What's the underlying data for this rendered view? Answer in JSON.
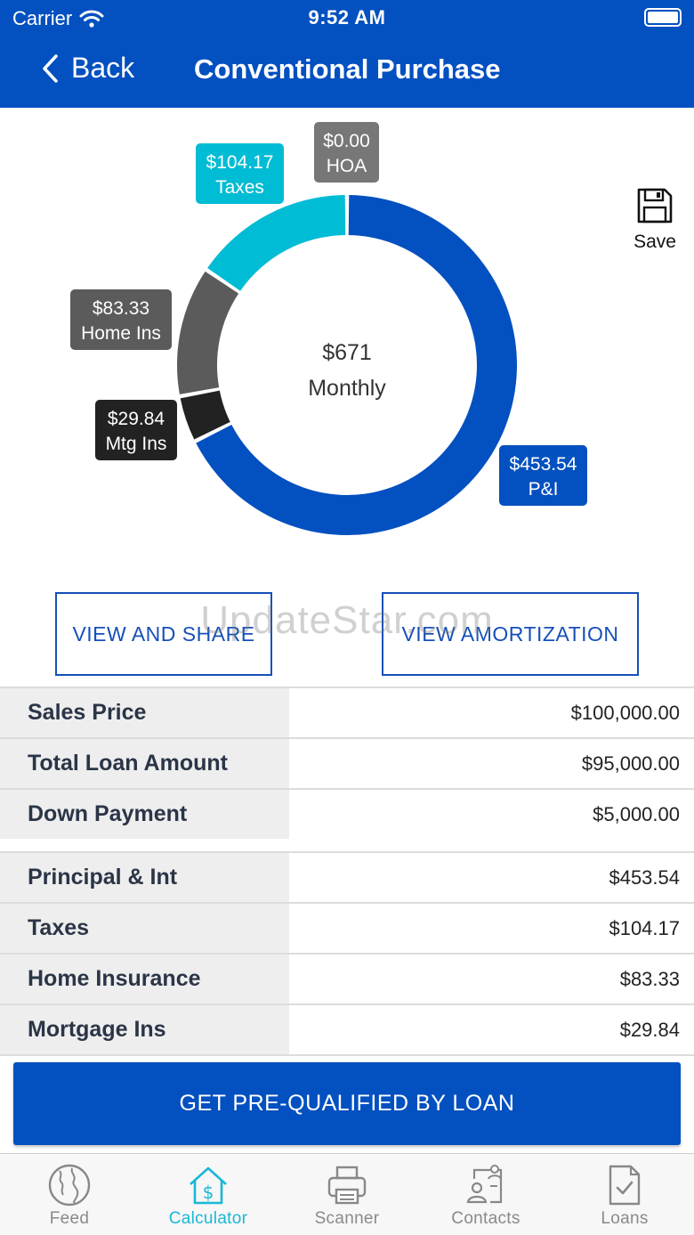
{
  "status": {
    "carrier": "Carrier",
    "time": "9:52 AM"
  },
  "header": {
    "back_label": "Back",
    "title": "Conventional Purchase"
  },
  "chart_data": {
    "type": "pie",
    "center_value": "$671",
    "center_label": "Monthly",
    "slices": [
      {
        "label": "P&I",
        "value": 453.54,
        "display": "$453.54",
        "color": "#0350c0"
      },
      {
        "label": "Mtg Ins",
        "value": 29.84,
        "display": "$29.84",
        "color": "#222222"
      },
      {
        "label": "Home Ins",
        "value": 83.33,
        "display": "$83.33",
        "color": "#5b5b5b"
      },
      {
        "label": "Taxes",
        "value": 104.17,
        "display": "$104.17",
        "color": "#00bcd4"
      },
      {
        "label": "HOA",
        "value": 0.0,
        "display": "$0.00",
        "color": "#777777"
      }
    ]
  },
  "save": {
    "label": "Save",
    "icon": "floppy-disk-icon"
  },
  "actions": {
    "view_share": "VIEW AND SHARE",
    "view_amortization": "VIEW AMORTIZATION"
  },
  "watermark": "UpdateStar.com",
  "loan_summary": [
    {
      "label": "Sales Price",
      "value": "$100,000.00"
    },
    {
      "label": "Total Loan Amount",
      "value": "$95,000.00"
    },
    {
      "label": "Down Payment",
      "value": "$5,000.00"
    }
  ],
  "payment_breakdown": [
    {
      "label": "Principal & Int",
      "value": "$453.54"
    },
    {
      "label": "Taxes",
      "value": "$104.17"
    },
    {
      "label": "Home Insurance",
      "value": "$83.33"
    },
    {
      "label": "Mortgage Ins",
      "value": "$29.84"
    }
  ],
  "cta": {
    "label": "GET PRE-QUALIFIED BY LOAN"
  },
  "tabs": [
    {
      "label": "Feed",
      "icon": "globe-icon",
      "active": false
    },
    {
      "label": "Calculator",
      "icon": "house-dollar-icon",
      "active": true
    },
    {
      "label": "Scanner",
      "icon": "printer-icon",
      "active": false
    },
    {
      "label": "Contacts",
      "icon": "contacts-icon",
      "active": false
    },
    {
      "label": "Loans",
      "icon": "document-check-icon",
      "active": false
    }
  ]
}
